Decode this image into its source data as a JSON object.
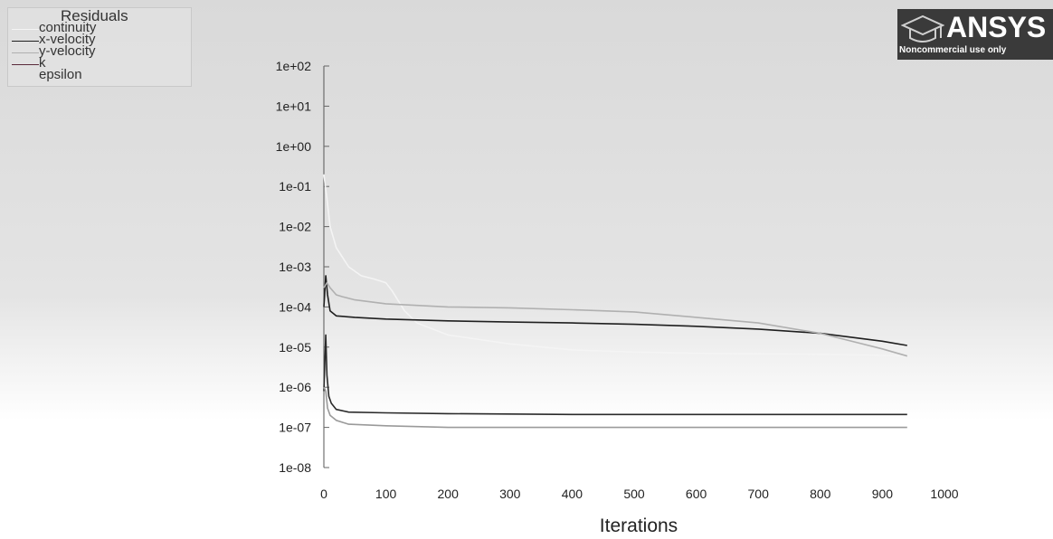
{
  "chart_data": {
    "type": "line",
    "title": "",
    "xlabel": "Iterations",
    "ylabel": "",
    "y_scale": "log",
    "xlim": [
      0,
      1000
    ],
    "ylim": [
      1e-08,
      100
    ],
    "x_ticks": [
      "0",
      "100",
      "200",
      "300",
      "400",
      "500",
      "600",
      "700",
      "800",
      "900",
      "1000"
    ],
    "y_ticks": [
      "1e+02",
      "1e+01",
      "1e+00",
      "1e-01",
      "1e-02",
      "1e-03",
      "1e-04",
      "1e-05",
      "1e-06",
      "1e-07",
      "1e-08"
    ],
    "legend_title": "Residuals",
    "legend_placement": "top-left",
    "grid": false,
    "series": [
      {
        "name": "continuity",
        "color": "#f4f4f4",
        "x": [
          0,
          5,
          10,
          20,
          40,
          60,
          80,
          100,
          110,
          130,
          150,
          200,
          300,
          400,
          500,
          600,
          700,
          800,
          900,
          940
        ],
        "y": [
          0.2,
          0.05,
          0.01,
          0.003,
          0.001,
          0.0006,
          0.0005,
          0.0004,
          0.00025,
          8e-05,
          4e-05,
          2e-05,
          1.2e-05,
          8.5e-06,
          7.5e-06,
          7e-06,
          6.8e-06,
          6.6e-06,
          6.2e-06,
          6e-06
        ]
      },
      {
        "name": "x-velocity",
        "color": "#1f1f1f",
        "x": [
          0,
          3,
          6,
          10,
          20,
          50,
          100,
          200,
          300,
          400,
          500,
          600,
          700,
          800,
          900,
          940
        ],
        "y": [
          0.0001,
          0.0006,
          0.0002,
          8e-05,
          6e-05,
          5.5e-05,
          5e-05,
          4.5e-05,
          4.2e-05,
          4e-05,
          3.7e-05,
          3.3e-05,
          2.8e-05,
          2.2e-05,
          1.4e-05,
          1.1e-05
        ]
      },
      {
        "name": "y-velocity",
        "color": "#b0b0b0",
        "x": [
          0,
          5,
          10,
          20,
          30,
          50,
          100,
          200,
          300,
          400,
          500,
          600,
          700,
          800,
          900,
          940
        ],
        "y": [
          0.0003,
          0.0004,
          0.0003,
          0.0002,
          0.00018,
          0.00015,
          0.00012,
          0.0001,
          9.5e-05,
          8.5e-05,
          7.5e-05,
          5.5e-05,
          4e-05,
          2.2e-05,
          9e-06,
          6e-06
        ]
      },
      {
        "name": "k",
        "color": "#2a2a2a",
        "x": [
          0,
          3,
          5,
          8,
          12,
          20,
          40,
          100,
          200,
          400,
          600,
          800,
          940
        ],
        "y": [
          8e-07,
          2e-05,
          2e-06,
          6e-07,
          4e-07,
          2.8e-07,
          2.4e-07,
          2.3e-07,
          2.2e-07,
          2.1e-07,
          2.1e-07,
          2.1e-07,
          2.1e-07
        ]
      },
      {
        "name": "epsilon",
        "color": "#9a9a9a",
        "x": [
          0,
          3,
          6,
          10,
          20,
          40,
          100,
          200,
          400,
          600,
          800,
          940
        ],
        "y": [
          1e-06,
          8e-07,
          3e-07,
          2e-07,
          1.5e-07,
          1.2e-07,
          1.1e-07,
          1e-07,
          1e-07,
          1e-07,
          1e-07,
          1e-07
        ]
      }
    ]
  },
  "logo": {
    "text": "ANSYS",
    "subtitle": "Noncommercial use only"
  }
}
